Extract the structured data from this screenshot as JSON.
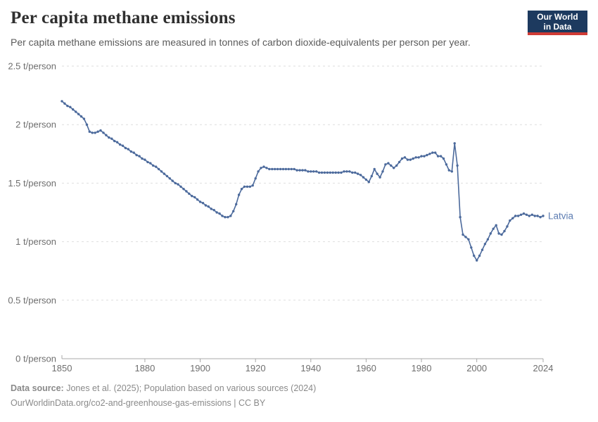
{
  "header": {
    "title": "Per capita methane emissions",
    "subtitle": "Per capita methane emissions are measured in tonnes of carbon dioxide-equivalents per person per year.",
    "logo": {
      "line1": "Our World",
      "line2": "in Data"
    }
  },
  "footer": {
    "source_label": "Data source:",
    "source_text": " Jones et al. (2025); Population based on various sources (2024)",
    "license_text": "OurWorldinData.org/co2-and-greenhouse-gas-emissions | CC BY"
  },
  "colors": {
    "series_line": "#4c6a9c",
    "series_label": "#5d7db2",
    "gridline": "#dedede",
    "axis": "#a8a8a8",
    "tick_label": "#6e6e6e",
    "logo_bg": "#1d3a5f",
    "logo_stripe": "#cf3b35"
  },
  "chart_data": {
    "type": "line",
    "title": "Per capita methane emissions",
    "xlabel": "",
    "ylabel": "t/person",
    "xlim": [
      1850,
      2024
    ],
    "ylim": [
      0,
      2.5
    ],
    "grid": "horizontal-dashed",
    "legend_position": "end-of-line",
    "x_ticks": [
      1850,
      1880,
      1900,
      1920,
      1940,
      1960,
      1980,
      2000,
      2024
    ],
    "y_ticks": [
      {
        "value": 0,
        "label": "0 t/person"
      },
      {
        "value": 0.5,
        "label": "0.5 t/person"
      },
      {
        "value": 1,
        "label": "1 t/person"
      },
      {
        "value": 1.5,
        "label": "1.5 t/person"
      },
      {
        "value": 2,
        "label": "2 t/person"
      },
      {
        "value": 2.5,
        "label": "2.5 t/person"
      }
    ],
    "series": [
      {
        "name": "Latvia",
        "color": "#4c6a9c",
        "years": [
          1850,
          1851,
          1852,
          1853,
          1854,
          1855,
          1856,
          1857,
          1858,
          1859,
          1860,
          1861,
          1862,
          1863,
          1864,
          1865,
          1866,
          1867,
          1868,
          1869,
          1870,
          1871,
          1872,
          1873,
          1874,
          1875,
          1876,
          1877,
          1878,
          1879,
          1880,
          1881,
          1882,
          1883,
          1884,
          1885,
          1886,
          1887,
          1888,
          1889,
          1890,
          1891,
          1892,
          1893,
          1894,
          1895,
          1896,
          1897,
          1898,
          1899,
          1900,
          1901,
          1902,
          1903,
          1904,
          1905,
          1906,
          1907,
          1908,
          1909,
          1910,
          1911,
          1912,
          1913,
          1914,
          1915,
          1916,
          1917,
          1918,
          1919,
          1920,
          1921,
          1922,
          1923,
          1924,
          1925,
          1926,
          1927,
          1928,
          1929,
          1930,
          1931,
          1932,
          1933,
          1934,
          1935,
          1936,
          1937,
          1938,
          1939,
          1940,
          1941,
          1942,
          1943,
          1944,
          1945,
          1946,
          1947,
          1948,
          1949,
          1950,
          1951,
          1952,
          1953,
          1954,
          1955,
          1956,
          1957,
          1958,
          1959,
          1960,
          1961,
          1962,
          1963,
          1964,
          1965,
          1966,
          1967,
          1968,
          1969,
          1970,
          1971,
          1972,
          1973,
          1974,
          1975,
          1976,
          1977,
          1978,
          1979,
          1980,
          1981,
          1982,
          1983,
          1984,
          1985,
          1986,
          1987,
          1988,
          1989,
          1990,
          1991,
          1992,
          1993,
          1994,
          1995,
          1996,
          1997,
          1998,
          1999,
          2000,
          2001,
          2002,
          2003,
          2004,
          2005,
          2006,
          2007,
          2008,
          2009,
          2010,
          2011,
          2012,
          2013,
          2014,
          2015,
          2016,
          2017,
          2018,
          2019,
          2020,
          2021,
          2022,
          2023,
          2024
        ],
        "values": [
          2.2,
          2.18,
          2.16,
          2.15,
          2.13,
          2.11,
          2.09,
          2.07,
          2.05,
          2.0,
          1.94,
          1.93,
          1.93,
          1.94,
          1.95,
          1.93,
          1.91,
          1.89,
          1.88,
          1.86,
          1.85,
          1.83,
          1.82,
          1.8,
          1.79,
          1.77,
          1.76,
          1.74,
          1.73,
          1.71,
          1.7,
          1.68,
          1.67,
          1.65,
          1.64,
          1.62,
          1.6,
          1.58,
          1.56,
          1.54,
          1.52,
          1.5,
          1.49,
          1.47,
          1.45,
          1.43,
          1.41,
          1.39,
          1.38,
          1.36,
          1.34,
          1.33,
          1.31,
          1.3,
          1.28,
          1.27,
          1.25,
          1.24,
          1.22,
          1.21,
          1.21,
          1.22,
          1.26,
          1.32,
          1.4,
          1.45,
          1.47,
          1.47,
          1.47,
          1.48,
          1.54,
          1.6,
          1.63,
          1.64,
          1.63,
          1.62,
          1.62,
          1.62,
          1.62,
          1.62,
          1.62,
          1.62,
          1.62,
          1.62,
          1.62,
          1.61,
          1.61,
          1.61,
          1.61,
          1.6,
          1.6,
          1.6,
          1.6,
          1.59,
          1.59,
          1.59,
          1.59,
          1.59,
          1.59,
          1.59,
          1.59,
          1.59,
          1.6,
          1.6,
          1.6,
          1.59,
          1.59,
          1.58,
          1.57,
          1.55,
          1.53,
          1.51,
          1.56,
          1.62,
          1.58,
          1.55,
          1.6,
          1.66,
          1.67,
          1.65,
          1.63,
          1.65,
          1.68,
          1.71,
          1.72,
          1.7,
          1.7,
          1.71,
          1.72,
          1.72,
          1.73,
          1.73,
          1.74,
          1.75,
          1.76,
          1.76,
          1.73,
          1.73,
          1.71,
          1.66,
          1.61,
          1.6,
          1.84,
          1.65,
          1.21,
          1.06,
          1.04,
          1.02,
          0.95,
          0.88,
          0.84,
          0.88,
          0.93,
          0.98,
          1.02,
          1.07,
          1.11,
          1.14,
          1.07,
          1.06,
          1.09,
          1.13,
          1.18,
          1.2,
          1.22,
          1.22,
          1.23,
          1.24,
          1.23,
          1.22,
          1.23,
          1.22,
          1.22,
          1.21,
          1.22
        ]
      }
    ]
  }
}
